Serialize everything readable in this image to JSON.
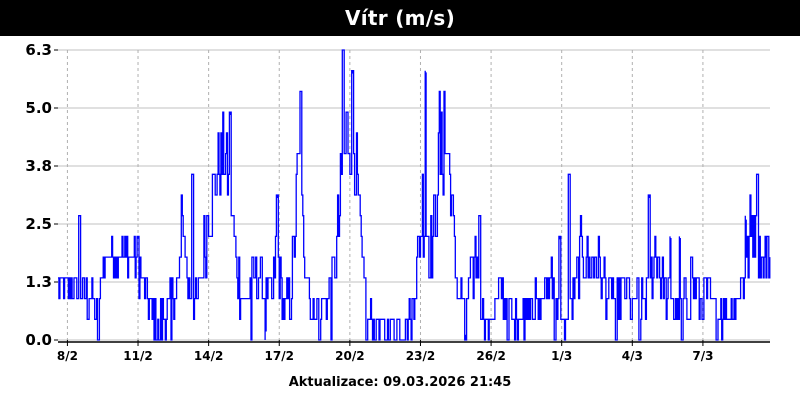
{
  "header": {
    "title": "Vítr (m/s)"
  },
  "footer": {
    "updated": "Aktualizace: 09.03.2026 21:45"
  },
  "chart_data": {
    "type": "line",
    "title": "Vítr (m/s)",
    "ylim": [
      0,
      6.3
    ],
    "yticks": [
      "0.0",
      "1.3",
      "2.5",
      "3.8",
      "5.0",
      "6.3"
    ],
    "ytick_values": [
      0,
      1.26,
      2.52,
      3.78,
      5.04,
      6.3
    ],
    "xlim": [
      0,
      30
    ],
    "xticks": [
      {
        "label": "8/2",
        "x": 0
      },
      {
        "label": "11/2",
        "x": 3
      },
      {
        "label": "14/2",
        "x": 6
      },
      {
        "label": "17/2",
        "x": 9
      },
      {
        "label": "20/2",
        "x": 12
      },
      {
        "label": "23/2",
        "x": 15
      },
      {
        "label": "26/2",
        "x": 18
      },
      {
        "label": "1/3",
        "x": 21
      },
      {
        "label": "4/3",
        "x": 24
      },
      {
        "label": "7/3",
        "x": 27
      }
    ],
    "grid": true,
    "line_color": "#0000ff",
    "series": [
      {
        "profile": [
          [
            -0.4,
            1.0,
            0.5
          ],
          [
            0.2,
            1.2,
            0.5
          ],
          [
            0.6,
            1.1,
            0.6
          ],
          [
            1.0,
            0.8,
            0.4
          ],
          [
            1.3,
            0.6,
            0.5
          ],
          [
            1.5,
            1.7,
            0.5
          ],
          [
            1.8,
            1.9,
            0.4
          ],
          [
            2.1,
            1.8,
            0.5
          ],
          [
            2.5,
            1.9,
            0.4
          ],
          [
            2.9,
            1.8,
            0.5
          ],
          [
            3.2,
            1.2,
            0.5
          ],
          [
            3.5,
            0.7,
            0.4
          ],
          [
            3.8,
            0.4,
            0.4
          ],
          [
            4.1,
            0.5,
            0.5
          ],
          [
            4.4,
            0.8,
            0.5
          ],
          [
            4.7,
            1.2,
            0.6
          ],
          [
            4.9,
            2.8,
            0.8
          ],
          [
            5.1,
            1.1,
            0.5
          ],
          [
            5.4,
            0.7,
            0.4
          ],
          [
            5.7,
            1.5,
            0.6
          ],
          [
            6.0,
            3.0,
            1.0
          ],
          [
            6.3,
            3.5,
            1.0
          ],
          [
            6.6,
            4.1,
            0.8
          ],
          [
            6.9,
            3.2,
            0.9
          ],
          [
            7.2,
            1.4,
            0.6
          ],
          [
            7.5,
            0.9,
            0.5
          ],
          [
            7.8,
            1.2,
            0.5
          ],
          [
            8.1,
            1.3,
            0.5
          ],
          [
            8.4,
            1.1,
            0.5
          ],
          [
            8.7,
            0.8,
            0.5
          ],
          [
            8.9,
            2.0,
            0.8
          ],
          [
            9.2,
            0.6,
            0.5
          ],
          [
            9.5,
            1.0,
            0.5
          ],
          [
            9.8,
            3.8,
            1.1
          ],
          [
            10.1,
            1.8,
            0.7
          ],
          [
            10.4,
            0.5,
            0.4
          ],
          [
            10.7,
            0.8,
            0.4
          ],
          [
            11.0,
            0.9,
            0.4
          ],
          [
            11.3,
            1.5,
            0.6
          ],
          [
            11.6,
            3.0,
            1.0
          ],
          [
            11.9,
            4.7,
            1.1
          ],
          [
            12.2,
            4.2,
            1.0
          ],
          [
            12.5,
            1.6,
            0.6
          ],
          [
            12.8,
            0.5,
            0.3
          ],
          [
            13.2,
            0.25,
            0.2
          ],
          [
            13.6,
            0.3,
            0.2
          ],
          [
            14.0,
            0.3,
            0.2
          ],
          [
            14.4,
            0.35,
            0.25
          ],
          [
            14.7,
            0.8,
            0.4
          ],
          [
            15.1,
            3.0,
            1.2
          ],
          [
            15.5,
            2.0,
            0.8
          ],
          [
            15.8,
            4.0,
            0.9
          ],
          [
            16.2,
            4.0,
            0.9
          ],
          [
            16.5,
            1.2,
            0.6
          ],
          [
            16.9,
            0.7,
            0.5
          ],
          [
            17.2,
            1.3,
            0.6
          ],
          [
            17.4,
            2.0,
            0.8
          ],
          [
            17.7,
            0.35,
            0.3
          ],
          [
            18.0,
            0.4,
            0.3
          ],
          [
            18.3,
            1.0,
            0.5
          ],
          [
            18.6,
            0.9,
            0.5
          ],
          [
            19.0,
            0.4,
            0.3
          ],
          [
            19.4,
            0.7,
            0.4
          ],
          [
            19.7,
            0.9,
            0.5
          ],
          [
            20.0,
            0.6,
            0.4
          ],
          [
            20.3,
            1.0,
            0.5
          ],
          [
            20.6,
            1.6,
            0.6
          ],
          [
            20.9,
            0.5,
            0.3
          ],
          [
            21.2,
            0.4,
            0.3
          ],
          [
            21.6,
            1.1,
            0.5
          ],
          [
            21.9,
            2.2,
            0.9
          ],
          [
            22.2,
            1.5,
            0.6
          ],
          [
            22.5,
            1.8,
            0.7
          ],
          [
            22.8,
            1.0,
            0.5
          ],
          [
            23.1,
            1.1,
            0.5
          ],
          [
            23.4,
            0.9,
            0.5
          ],
          [
            23.7,
            1.2,
            0.5
          ],
          [
            24.0,
            0.7,
            0.4
          ],
          [
            24.3,
            0.9,
            0.5
          ],
          [
            24.7,
            1.0,
            0.5
          ],
          [
            25.0,
            2.0,
            0.9
          ],
          [
            25.4,
            1.0,
            0.5
          ],
          [
            25.7,
            0.8,
            0.4
          ],
          [
            26.0,
            0.6,
            0.4
          ],
          [
            26.3,
            0.9,
            0.5
          ],
          [
            26.6,
            1.2,
            0.6
          ],
          [
            26.9,
            0.9,
            0.5
          ],
          [
            27.2,
            1.0,
            0.5
          ],
          [
            27.5,
            0.5,
            0.4
          ],
          [
            27.8,
            0.8,
            0.4
          ],
          [
            28.1,
            0.6,
            0.4
          ],
          [
            28.4,
            0.9,
            0.5
          ],
          [
            28.7,
            1.2,
            0.5
          ],
          [
            29.1,
            2.6,
            0.9
          ],
          [
            29.4,
            1.8,
            0.6
          ],
          [
            29.7,
            1.8,
            0.6
          ]
        ],
        "peaks": [
          [
            0.5,
            2.7
          ],
          [
            3.0,
            2.2
          ],
          [
            4.8,
            1.8
          ],
          [
            5.3,
            3.6
          ],
          [
            6.9,
            4.9
          ],
          [
            8.9,
            3.1
          ],
          [
            9.9,
            5.4
          ],
          [
            11.7,
            6.3
          ],
          [
            12.1,
            5.8
          ],
          [
            15.2,
            5.8
          ],
          [
            15.8,
            5.4
          ],
          [
            16.0,
            5.4
          ],
          [
            17.5,
            2.7
          ],
          [
            20.9,
            2.2
          ],
          [
            21.3,
            3.6
          ],
          [
            21.8,
            2.7
          ],
          [
            22.8,
            1.8
          ],
          [
            24.7,
            3.1
          ],
          [
            25.6,
            2.2
          ],
          [
            26.0,
            2.2
          ],
          [
            26.5,
            1.8
          ],
          [
            28.8,
            2.6
          ],
          [
            29.3,
            3.6
          ]
        ],
        "troughs": [
          [
            1.3,
            0.0
          ],
          [
            3.9,
            0.0
          ],
          [
            4.4,
            0.0
          ],
          [
            7.8,
            0.0
          ],
          [
            8.4,
            0.2
          ],
          [
            10.7,
            0.0
          ],
          [
            11.2,
            0.0
          ],
          [
            12.7,
            0.0
          ],
          [
            13.5,
            0.0
          ],
          [
            14.6,
            0.0
          ],
          [
            16.9,
            0.1
          ],
          [
            18.7,
            0.0
          ],
          [
            19.4,
            0.0
          ],
          [
            20.7,
            0.0
          ],
          [
            23.3,
            0.0
          ],
          [
            24.3,
            0.0
          ],
          [
            26.1,
            0.0
          ],
          [
            27.8,
            0.0
          ]
        ]
      }
    ]
  }
}
